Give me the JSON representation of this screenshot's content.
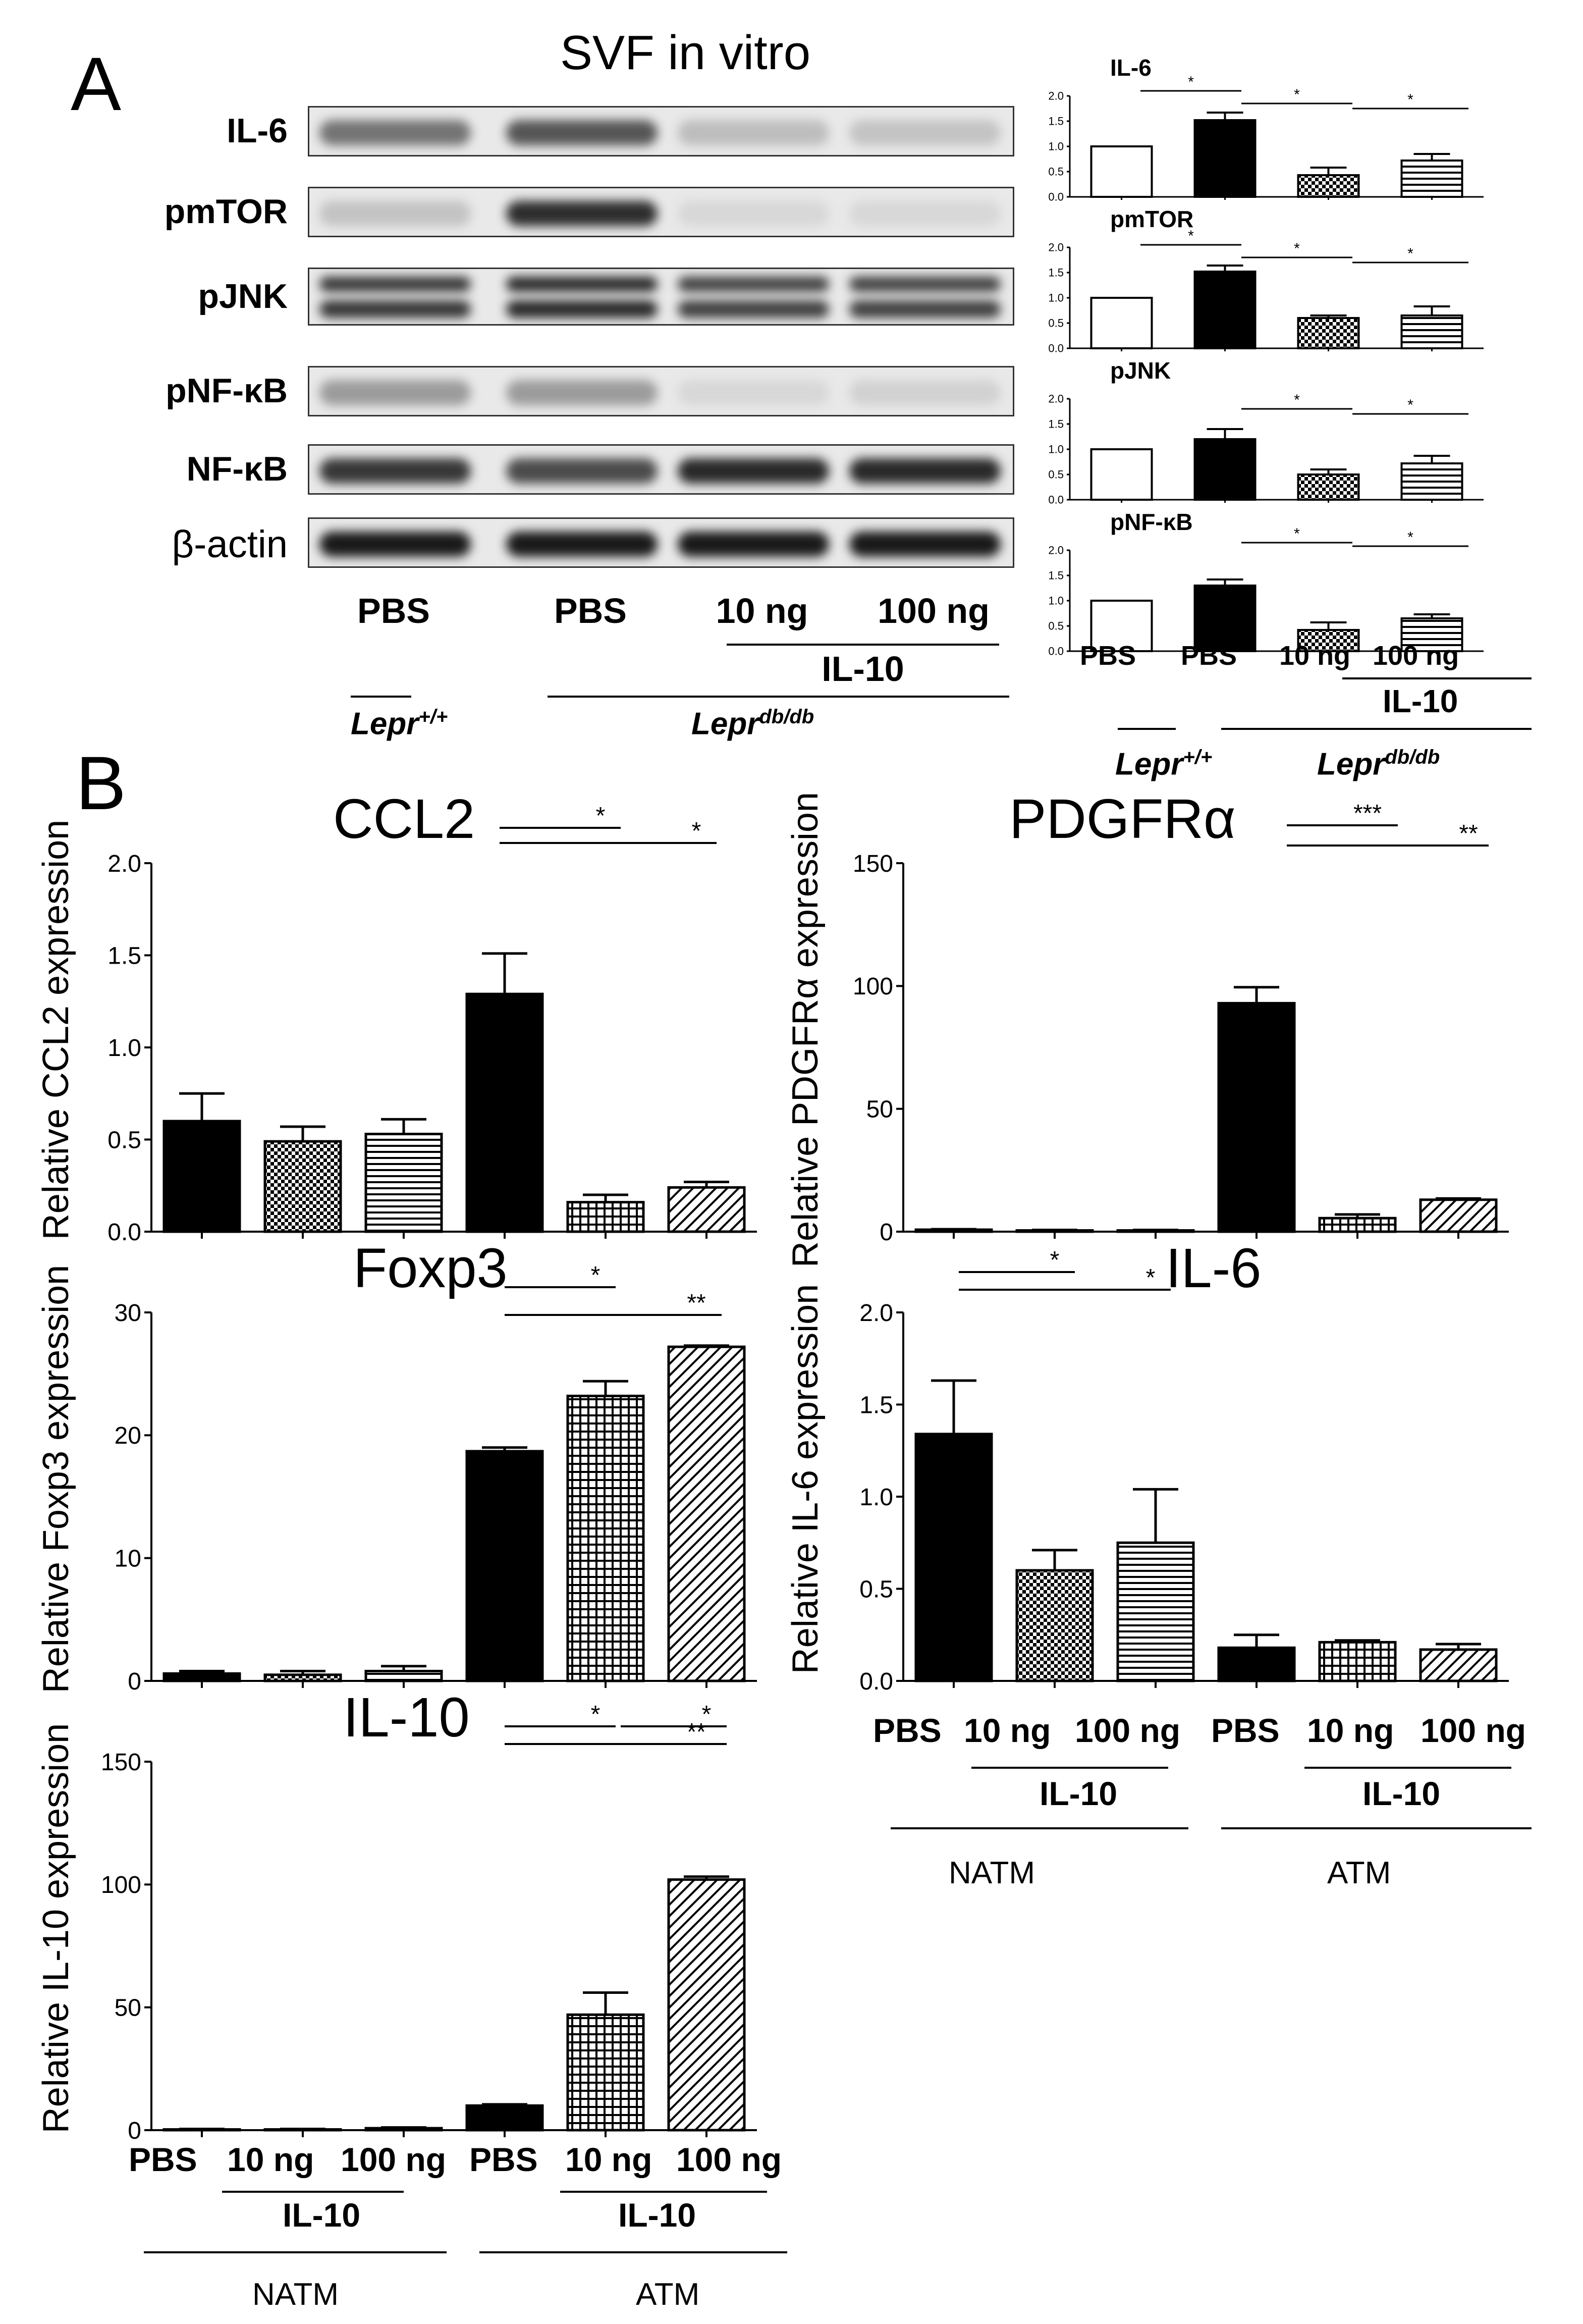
{
  "panel_a": {
    "letter": "A",
    "title": "SVF in vitro",
    "blot": {
      "proteins": [
        "IL-6",
        "pmTOR",
        "pJNK",
        "pNF-κB",
        "NF-κB",
        "β-actin"
      ],
      "lane_labels": [
        "PBS",
        "PBS",
        "10 ng",
        "100 ng"
      ],
      "group_il10": "IL-10",
      "genotype_wt": "Lepr",
      "genotype_wt_sup": "+/+",
      "genotype_db": "Lepr",
      "genotype_db_sup": "db/db"
    },
    "xlabels": [
      "PBS",
      "PBS",
      "10 ng",
      "100 ng"
    ],
    "il10_label": "IL-10",
    "genotype_wt": "Lepr",
    "genotype_wt_sup": "+/+",
    "genotype_db": "Lepr",
    "genotype_db_sup": "db/db"
  },
  "panel_b": {
    "letter": "B",
    "xlabels": [
      "PBS",
      "10 ng",
      "100 ng",
      "PBS",
      "10 ng",
      "100 ng"
    ],
    "il10_label": "IL-10",
    "group_natm": "NATM",
    "group_atm": "ATM"
  },
  "chart_data": [
    {
      "id": "a_il6",
      "type": "bar",
      "title": "IL-6",
      "categories": [
        "PBS",
        "PBS",
        "10 ng",
        "100 ng"
      ],
      "values": [
        1.0,
        1.52,
        0.43,
        0.72
      ],
      "errors": [
        0,
        0.15,
        0.15,
        0.13
      ],
      "ylim": [
        0,
        2.0
      ],
      "yticks": [
        "0.0",
        "0.5",
        "1.0",
        "1.5",
        "2.0"
      ],
      "significance": [
        "*",
        "*",
        "*"
      ]
    },
    {
      "id": "a_pmtor",
      "type": "bar",
      "title": "pmTOR",
      "categories": [
        "PBS",
        "PBS",
        "10 ng",
        "100 ng"
      ],
      "values": [
        1.0,
        1.52,
        0.6,
        0.65
      ],
      "errors": [
        0,
        0.12,
        0.05,
        0.18
      ],
      "ylim": [
        0,
        2.0
      ],
      "yticks": [
        "0.0",
        "0.5",
        "1.0",
        "1.5",
        "2.0"
      ],
      "significance": [
        "*",
        "*",
        "*"
      ]
    },
    {
      "id": "a_pjnk",
      "type": "bar",
      "title": "pJNK",
      "categories": [
        "PBS",
        "PBS",
        "10 ng",
        "100 ng"
      ],
      "values": [
        1.0,
        1.2,
        0.5,
        0.72
      ],
      "errors": [
        0,
        0.2,
        0.1,
        0.15
      ],
      "ylim": [
        0,
        2.0
      ],
      "yticks": [
        "0.0",
        "0.5",
        "1.0",
        "1.5",
        "2.0"
      ],
      "significance": [
        "*",
        "*"
      ]
    },
    {
      "id": "a_pnfkb",
      "type": "bar",
      "title": "pNF-κB",
      "categories": [
        "PBS",
        "PBS",
        "10 ng",
        "100 ng"
      ],
      "values": [
        1.0,
        1.3,
        0.42,
        0.65
      ],
      "errors": [
        0,
        0.12,
        0.15,
        0.08
      ],
      "ylim": [
        0,
        2.0
      ],
      "yticks": [
        "0.0",
        "0.5",
        "1.0",
        "1.5",
        "2.0"
      ],
      "significance": [
        "*",
        "*"
      ]
    },
    {
      "id": "b_ccl2",
      "type": "bar",
      "title": "CCL2",
      "ylabel": "Relative CCL2 expression",
      "categories": [
        "PBS",
        "10 ng",
        "100 ng",
        "PBS",
        "10 ng",
        "100 ng"
      ],
      "values": [
        0.6,
        0.49,
        0.53,
        1.29,
        0.16,
        0.24
      ],
      "errors": [
        0.15,
        0.08,
        0.08,
        0.22,
        0.04,
        0.03
      ],
      "ylim": [
        0,
        2.0
      ],
      "yticks": [
        "0.0",
        "0.5",
        "1.0",
        "1.5",
        "2.0"
      ],
      "significance": [
        "*",
        "*"
      ]
    },
    {
      "id": "b_pdgfra",
      "type": "bar",
      "title": "PDGFRα",
      "ylabel": "Relative PDGFRα expression",
      "categories": [
        "PBS",
        "10 ng",
        "100 ng",
        "PBS",
        "10 ng",
        "100 ng"
      ],
      "values": [
        0.8,
        0.5,
        0.5,
        93,
        5.5,
        13
      ],
      "errors": [
        0.2,
        0.2,
        0.2,
        6.5,
        1.5,
        0.5
      ],
      "ylim": [
        0,
        150
      ],
      "yticks": [
        "0",
        "50",
        "100",
        "150"
      ],
      "significance": [
        "***",
        "**"
      ]
    },
    {
      "id": "b_foxp3",
      "type": "bar",
      "title": "Foxp3",
      "ylabel": "Relative Foxp3 expression",
      "categories": [
        "PBS",
        "10 ng",
        "100 ng",
        "PBS",
        "10 ng",
        "100 ng"
      ],
      "values": [
        0.6,
        0.5,
        0.8,
        18.7,
        23.2,
        27.2
      ],
      "errors": [
        0.2,
        0.3,
        0.4,
        0.3,
        1.2,
        0.1
      ],
      "ylim": [
        0,
        30
      ],
      "yticks": [
        "0",
        "10",
        "20",
        "30"
      ],
      "significance": [
        "*",
        "**"
      ]
    },
    {
      "id": "b_il6",
      "type": "bar",
      "title": "IL-6",
      "ylabel": "Relative IL-6 expression",
      "categories": [
        "PBS",
        "10 ng",
        "100 ng",
        "PBS",
        "10 ng",
        "100 ng"
      ],
      "values": [
        1.34,
        0.6,
        0.75,
        0.18,
        0.21,
        0.17
      ],
      "errors": [
        0.29,
        0.11,
        0.29,
        0.07,
        0.01,
        0.03
      ],
      "ylim": [
        0,
        2.0
      ],
      "yticks": [
        "0.0",
        "0.5",
        "1.0",
        "1.5",
        "2.0"
      ],
      "significance": [
        "*",
        "*"
      ]
    },
    {
      "id": "b_il10",
      "type": "bar",
      "title": "IL-10",
      "ylabel": "Relative IL-10 expression",
      "categories": [
        "PBS",
        "10 ng",
        "100 ng",
        "PBS",
        "10 ng",
        "100 ng"
      ],
      "values": [
        0.3,
        0.3,
        0.8,
        10,
        47,
        102
      ],
      "errors": [
        0.2,
        0.2,
        0.3,
        0.5,
        9,
        1.2
      ],
      "ylim": [
        0,
        150
      ],
      "yticks": [
        "0",
        "50",
        "100",
        "150"
      ],
      "significance": [
        "*",
        "*",
        "**"
      ]
    }
  ]
}
